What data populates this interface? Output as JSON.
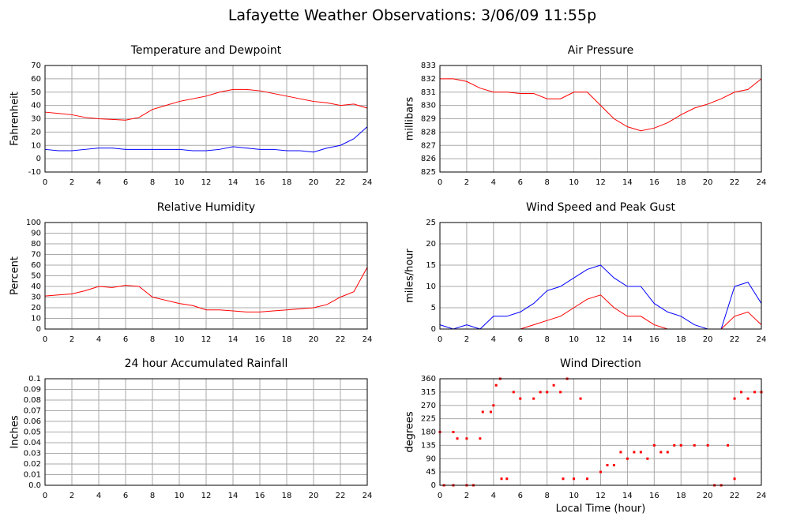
{
  "title": "Lafayette Weather Observations: 3/06/09 11:55p",
  "chart_data": [
    {
      "type": "line",
      "title": "Temperature and Dewpoint",
      "ylabel": "Fahrenheit",
      "x": [
        0,
        1,
        2,
        3,
        4,
        5,
        6,
        7,
        8,
        9,
        10,
        11,
        12,
        13,
        14,
        15,
        16,
        17,
        18,
        19,
        20,
        21,
        22,
        23,
        24
      ],
      "series": [
        {
          "color": "#ff0000",
          "values": [
            35,
            34,
            33,
            31,
            30,
            29.5,
            29,
            31,
            37,
            40,
            43,
            45,
            47,
            50,
            52,
            52,
            51,
            49,
            47,
            45,
            43,
            42,
            40,
            41,
            38
          ]
        },
        {
          "color": "#0000ff",
          "values": [
            7,
            6,
            6,
            7,
            8,
            8,
            7,
            7,
            7,
            7,
            7,
            6,
            6,
            7,
            9,
            8,
            7,
            7,
            6,
            6,
            5,
            8,
            10,
            15,
            24
          ]
        }
      ],
      "xlim": [
        0,
        24
      ],
      "xticks": [
        0,
        2,
        4,
        6,
        8,
        10,
        12,
        14,
        16,
        18,
        20,
        22,
        24
      ],
      "ylim": [
        -10,
        70
      ],
      "yticks": [
        -10,
        0,
        10,
        20,
        30,
        40,
        50,
        60,
        70
      ],
      "grid": true
    },
    {
      "type": "line",
      "title": "Air Pressure",
      "ylabel": "millibars",
      "x": [
        0,
        1,
        2,
        3,
        4,
        5,
        6,
        7,
        8,
        9,
        10,
        11,
        12,
        13,
        14,
        15,
        16,
        17,
        18,
        19,
        20,
        21,
        22,
        23,
        24
      ],
      "series": [
        {
          "color": "#ff0000",
          "values": [
            832,
            832,
            831.8,
            831.3,
            831,
            831,
            830.9,
            830.9,
            830.5,
            830.5,
            831,
            831,
            830,
            829,
            828.4,
            828.1,
            828.3,
            828.7,
            829.3,
            829.8,
            830.1,
            830.5,
            831,
            831.2,
            832
          ]
        }
      ],
      "xlim": [
        0,
        24
      ],
      "xticks": [
        0,
        2,
        4,
        6,
        8,
        10,
        12,
        14,
        16,
        18,
        20,
        22,
        24
      ],
      "ylim": [
        825,
        833
      ],
      "yticks": [
        825,
        826,
        827,
        828,
        829,
        830,
        831,
        832,
        833
      ],
      "grid": true
    },
    {
      "type": "line",
      "title": "Relative Humidity",
      "ylabel": "Percent",
      "x": [
        0,
        1,
        2,
        3,
        4,
        5,
        6,
        7,
        8,
        9,
        10,
        11,
        12,
        13,
        14,
        15,
        16,
        17,
        18,
        19,
        20,
        21,
        22,
        23,
        24
      ],
      "series": [
        {
          "color": "#ff0000",
          "values": [
            31,
            32,
            33,
            36,
            40,
            39,
            41,
            40,
            30,
            27,
            24,
            22,
            18,
            18,
            17,
            16,
            16,
            17,
            18,
            19,
            20,
            23,
            30,
            35,
            58
          ]
        }
      ],
      "xlim": [
        0,
        24
      ],
      "xticks": [
        0,
        2,
        4,
        6,
        8,
        10,
        12,
        14,
        16,
        18,
        20,
        22,
        24
      ],
      "ylim": [
        0,
        100
      ],
      "yticks": [
        0,
        10,
        20,
        30,
        40,
        50,
        60,
        70,
        80,
        90,
        100
      ],
      "grid": true
    },
    {
      "type": "line",
      "title": "Wind Speed and Peak Gust",
      "ylabel": "miles/hour",
      "x": [
        0,
        1,
        2,
        3,
        4,
        5,
        6,
        7,
        8,
        9,
        10,
        11,
        12,
        13,
        14,
        15,
        16,
        17,
        18,
        19,
        20,
        21,
        22,
        23,
        24
      ],
      "series": [
        {
          "color": "#0000ff",
          "values": [
            1,
            0,
            1,
            0,
            3,
            3,
            4,
            6,
            9,
            10,
            12,
            14,
            15,
            12,
            10,
            10,
            6,
            4,
            3,
            1,
            0,
            0,
            10,
            11,
            6
          ]
        },
        {
          "color": "#ff0000",
          "values": [
            0,
            0,
            0,
            0,
            0,
            0,
            0,
            1,
            2,
            3,
            5,
            7,
            8,
            5,
            3,
            3,
            1,
            0,
            0,
            0,
            0,
            0,
            3,
            4,
            1
          ]
        }
      ],
      "xlim": [
        0,
        24
      ],
      "xticks": [
        0,
        2,
        4,
        6,
        8,
        10,
        12,
        14,
        16,
        18,
        20,
        22,
        24
      ],
      "ylim": [
        0,
        25
      ],
      "yticks": [
        0,
        5,
        10,
        15,
        20,
        25
      ],
      "grid": true
    },
    {
      "type": "line",
      "title": "24 hour Accumulated Rainfall",
      "ylabel": "Inches",
      "x": [
        0,
        24
      ],
      "series": [
        {
          "color": "#ff0000",
          "values": [
            0,
            0
          ]
        }
      ],
      "xlim": [
        0,
        24
      ],
      "xticks": [
        0,
        2,
        4,
        6,
        8,
        10,
        12,
        14,
        16,
        18,
        20,
        22,
        24
      ],
      "ylim": [
        0,
        0.1
      ],
      "yticks": [
        {
          "value": 0,
          "label": "0.0"
        },
        0.01,
        0.02,
        0.03,
        0.04,
        0.05,
        0.06,
        0.07,
        0.08,
        0.09,
        0.1
      ],
      "grid": true
    },
    {
      "type": "scatter",
      "title": "Wind Direction",
      "ylabel": "degrees",
      "xlabel": "Local Time (hour)",
      "color": "#ff0000",
      "x": [
        0,
        0.3,
        1,
        1,
        1.3,
        2,
        2,
        2.5,
        3,
        3.2,
        3.8,
        4,
        4.2,
        4.5,
        4.6,
        5,
        5.5,
        6,
        7,
        7.5,
        8,
        8.5,
        9,
        9.5,
        9.2,
        10,
        10.5,
        11,
        12,
        12.5,
        13,
        13.5,
        14,
        14.5,
        15,
        15.5,
        16,
        16.5,
        17,
        17.5,
        18,
        19,
        20,
        20.5,
        21,
        21.5,
        22,
        22,
        22.5,
        23,
        23.5,
        24
      ],
      "values": [
        180,
        0,
        0,
        180,
        158,
        158,
        0,
        0,
        158,
        248,
        248,
        270,
        338,
        360,
        22,
        22,
        315,
        293,
        293,
        315,
        315,
        338,
        315,
        360,
        22,
        22,
        293,
        22,
        45,
        68,
        68,
        112,
        90,
        112,
        112,
        90,
        135,
        112,
        112,
        135,
        135,
        135,
        135,
        0,
        0,
        135,
        22,
        293,
        315,
        293,
        315,
        315
      ],
      "xlim": [
        0,
        24
      ],
      "xticks": [
        0,
        2,
        4,
        6,
        8,
        10,
        12,
        14,
        16,
        18,
        20,
        22,
        24
      ],
      "ylim": [
        0,
        360
      ],
      "yticks": [
        0,
        45,
        90,
        135,
        180,
        225,
        270,
        315,
        360
      ],
      "grid": true
    }
  ]
}
